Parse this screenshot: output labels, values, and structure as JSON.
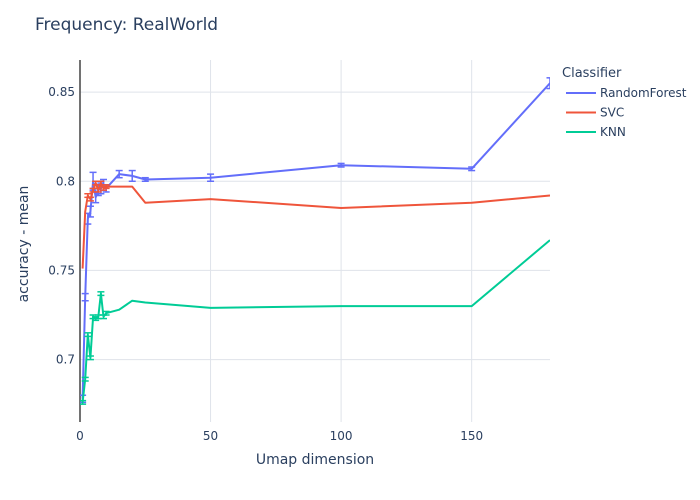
{
  "chart_data": {
    "type": "line",
    "title": "Frequency: RealWorld",
    "xlabel": "Umap dimension",
    "ylabel": "accuracy - mean",
    "xlim": [
      0,
      180
    ],
    "ylim": [
      0.665,
      0.868
    ],
    "xticks": [
      0,
      50,
      100,
      150
    ],
    "yticks": [
      0.7,
      0.75,
      0.8,
      0.85
    ],
    "ytick_labels": [
      "0.7",
      "0.75",
      "0.8",
      "0.85"
    ],
    "grid": true,
    "legend": {
      "title": "Classifier",
      "position": "top-right"
    },
    "series": [
      {
        "name": "RandomForest",
        "color": "#636efa",
        "x": [
          1,
          2,
          3,
          4,
          5,
          6,
          7,
          8,
          9,
          10,
          15,
          20,
          25,
          50,
          100,
          150,
          180
        ],
        "y": [
          0.678,
          0.735,
          0.779,
          0.783,
          0.8,
          0.791,
          0.795,
          0.796,
          0.798,
          0.796,
          0.804,
          0.803,
          0.801,
          0.802,
          0.809,
          0.807,
          0.855
        ],
        "err": [
          0.002,
          0.002,
          0.003,
          0.003,
          0.005,
          0.003,
          0.003,
          0.003,
          0.003,
          0.002,
          0.002,
          0.003,
          0.001,
          0.002,
          0.001,
          0.001,
          0.003
        ]
      },
      {
        "name": "SVC",
        "color": "#ef553b",
        "x": [
          1,
          2,
          3,
          4,
          5,
          6,
          7,
          8,
          9,
          10,
          15,
          20,
          25,
          50,
          100,
          150,
          180
        ],
        "y": [
          0.751,
          0.783,
          0.792,
          0.79,
          0.795,
          0.799,
          0.795,
          0.799,
          0.796,
          0.797,
          0.797,
          0.797,
          0.788,
          0.79,
          0.785,
          0.788,
          0.792
        ],
        "err": [
          0.0,
          0.0,
          0.001,
          0.001,
          0.001,
          0.001,
          0.001,
          0.001,
          0.001,
          0.001,
          0.0,
          0.0,
          0.0,
          0.0,
          0.0,
          0.0,
          0.0
        ]
      },
      {
        "name": "KNN",
        "color": "#00cc96",
        "x": [
          1,
          2,
          3,
          4,
          5,
          6,
          7,
          8,
          9,
          10,
          15,
          20,
          25,
          50,
          100,
          150,
          180
        ],
        "y": [
          0.676,
          0.689,
          0.714,
          0.701,
          0.724,
          0.723,
          0.724,
          0.737,
          0.724,
          0.726,
          0.728,
          0.733,
          0.732,
          0.729,
          0.73,
          0.73,
          0.767
        ],
        "err": [
          0.001,
          0.001,
          0.001,
          0.001,
          0.001,
          0.001,
          0.001,
          0.001,
          0.001,
          0.001,
          0.0,
          0.0,
          0.0,
          0.0,
          0.0,
          0.0,
          0.0
        ]
      }
    ]
  }
}
